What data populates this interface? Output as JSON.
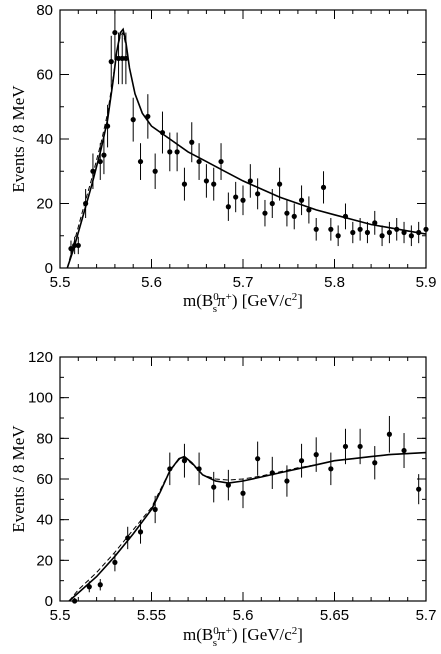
{
  "chart_data": [
    {
      "type": "scatter",
      "xlabel": "m(B_s^0π^+) [GeV/c^2]",
      "ylabel": "Events / 8 MeV",
      "xlim": [
        5.5,
        5.9
      ],
      "ylim": [
        0,
        80
      ],
      "xticks": [
        "5.5",
        "5.6",
        "5.7",
        "5.8",
        "5.9"
      ],
      "yticks": [
        "0",
        "20",
        "40",
        "60",
        "80"
      ],
      "grid": false,
      "series": [
        {
          "style": "points-with-errors",
          "x": [
            5.512,
            5.516,
            5.52,
            5.528,
            5.536,
            5.544,
            5.548,
            5.552,
            5.556,
            5.56,
            5.564,
            5.568,
            5.572,
            5.58,
            5.588,
            5.596,
            5.604,
            5.612,
            5.62,
            5.628,
            5.636,
            5.644,
            5.652,
            5.66,
            5.668,
            5.676,
            5.684,
            5.692,
            5.7,
            5.708,
            5.716,
            5.724,
            5.732,
            5.74,
            5.748,
            5.756,
            5.764,
            5.772,
            5.78,
            5.788,
            5.796,
            5.804,
            5.812,
            5.82,
            5.828,
            5.836,
            5.844,
            5.852,
            5.86,
            5.868,
            5.876,
            5.884,
            5.892,
            5.9
          ],
          "y": [
            6,
            7,
            7,
            20,
            30,
            33,
            35,
            44,
            64,
            73,
            65,
            65,
            65,
            46,
            33,
            47,
            30,
            42,
            36,
            36,
            26,
            39,
            33,
            27,
            26,
            33,
            19,
            22,
            21,
            27,
            23,
            17,
            20,
            26,
            17,
            16,
            21,
            18,
            12,
            25,
            12,
            10,
            16,
            11,
            12,
            11,
            14,
            10,
            11,
            12,
            11,
            10,
            11,
            12
          ],
          "err": [
            2.5,
            2.7,
            2.7,
            4.5,
            5.5,
            5.7,
            5.9,
            6.6,
            8,
            8.5,
            8,
            8,
            8,
            6.8,
            5.7,
            6.9,
            5.5,
            6.5,
            6,
            6,
            5.1,
            6.2,
            5.7,
            5.2,
            5.1,
            5.7,
            4.4,
            4.7,
            4.6,
            5.2,
            4.8,
            4.1,
            4.5,
            5.1,
            4.1,
            4,
            4.6,
            4.2,
            3.5,
            5,
            3.5,
            3.2,
            4,
            3.3,
            3.5,
            3.3,
            3.7,
            3.2,
            3.3,
            3.5,
            3.3,
            3.2,
            3.3,
            3.5
          ]
        },
        {
          "style": "fit-solid",
          "x": [
            5.508,
            5.515,
            5.525,
            5.535,
            5.545,
            5.552,
            5.558,
            5.562,
            5.566,
            5.569,
            5.572,
            5.576,
            5.582,
            5.59,
            5.6,
            5.62,
            5.64,
            5.66,
            5.68,
            5.7,
            5.72,
            5.74,
            5.76,
            5.78,
            5.8,
            5.82,
            5.84,
            5.86,
            5.88,
            5.9
          ],
          "y": [
            0,
            6,
            16,
            26,
            37,
            46,
            58,
            67,
            73,
            74,
            70,
            62,
            54,
            48,
            44,
            40,
            36,
            33,
            30,
            27,
            24.5,
            22,
            20,
            18,
            16.5,
            15,
            13.5,
            12.5,
            11.5,
            10.5
          ]
        },
        {
          "style": "fit-dashed",
          "x": [
            5.508,
            5.515,
            5.525,
            5.535,
            5.545,
            5.552,
            5.558,
            5.562,
            5.566,
            5.569,
            5.572,
            5.576,
            5.582,
            5.59,
            5.6,
            5.62,
            5.64,
            5.66,
            5.68,
            5.7,
            5.72,
            5.74,
            5.76,
            5.78,
            5.8,
            5.82,
            5.84,
            5.86,
            5.88,
            5.9
          ],
          "y": [
            0,
            7.5,
            18,
            28,
            39,
            48,
            59,
            67,
            72,
            73,
            69,
            62,
            54,
            48,
            44,
            40,
            36,
            33,
            30,
            27,
            24.5,
            22,
            20,
            18,
            16.5,
            15,
            13.5,
            12.5,
            11.5,
            10.5
          ]
        }
      ]
    },
    {
      "type": "scatter",
      "xlabel": "m(B_s^0π^+) [GeV/c^2]",
      "ylabel": "Events / 8 MeV",
      "xlim": [
        5.5,
        5.7
      ],
      "ylim": [
        0,
        120
      ],
      "xticks": [
        "5.5",
        "5.55",
        "5.6",
        "5.65",
        "5.7"
      ],
      "yticks": [
        "0",
        "20",
        "40",
        "60",
        "80",
        "100",
        "120"
      ],
      "grid": false,
      "series": [
        {
          "style": "points-with-errors",
          "x": [
            5.508,
            5.516,
            5.522,
            5.53,
            5.537,
            5.544,
            5.552,
            5.56,
            5.568,
            5.576,
            5.584,
            5.592,
            5.6,
            5.608,
            5.616,
            5.624,
            5.632,
            5.64,
            5.648,
            5.656,
            5.664,
            5.672,
            5.68,
            5.688,
            5.696
          ],
          "y": [
            0,
            7,
            8,
            19,
            31,
            34,
            45,
            65,
            69,
            65,
            56,
            57,
            53,
            70,
            63,
            59,
            69,
            72,
            65,
            76,
            76,
            68,
            82,
            74,
            55
          ],
          "err": [
            1.5,
            2.7,
            2.8,
            4.4,
            5.5,
            5.8,
            6.7,
            8,
            8.3,
            8,
            7.5,
            7.5,
            7.3,
            8.4,
            7.9,
            7.7,
            8.3,
            8.5,
            8,
            8.7,
            8.7,
            8.2,
            9,
            8.6,
            7.4
          ]
        },
        {
          "style": "fit-solid",
          "x": [
            5.505,
            5.51,
            5.52,
            5.53,
            5.54,
            5.55,
            5.555,
            5.56,
            5.565,
            5.568,
            5.572,
            5.578,
            5.585,
            5.592,
            5.6,
            5.61,
            5.62,
            5.63,
            5.64,
            5.65,
            5.66,
            5.67,
            5.68,
            5.69,
            5.7
          ],
          "y": [
            0,
            4,
            12,
            22,
            33,
            45,
            54,
            64,
            70,
            71,
            68,
            62,
            59,
            58,
            59,
            61,
            63,
            65,
            67,
            69,
            70,
            71,
            72,
            72.5,
            73
          ]
        },
        {
          "style": "fit-dashed",
          "x": [
            5.505,
            5.51,
            5.52,
            5.53,
            5.54,
            5.55,
            5.555,
            5.56,
            5.565,
            5.568,
            5.572,
            5.578,
            5.585,
            5.592,
            5.6,
            5.61,
            5.62,
            5.63,
            5.64,
            5.65,
            5.66,
            5.67,
            5.68,
            5.69,
            5.7
          ],
          "y": [
            0,
            5.5,
            14,
            24,
            35,
            46,
            55,
            64,
            69.5,
            70.5,
            67.5,
            62,
            60,
            59.5,
            60,
            61.5,
            63.5,
            65.5,
            67,
            69,
            70,
            71,
            72,
            72.5,
            73
          ]
        }
      ]
    }
  ]
}
